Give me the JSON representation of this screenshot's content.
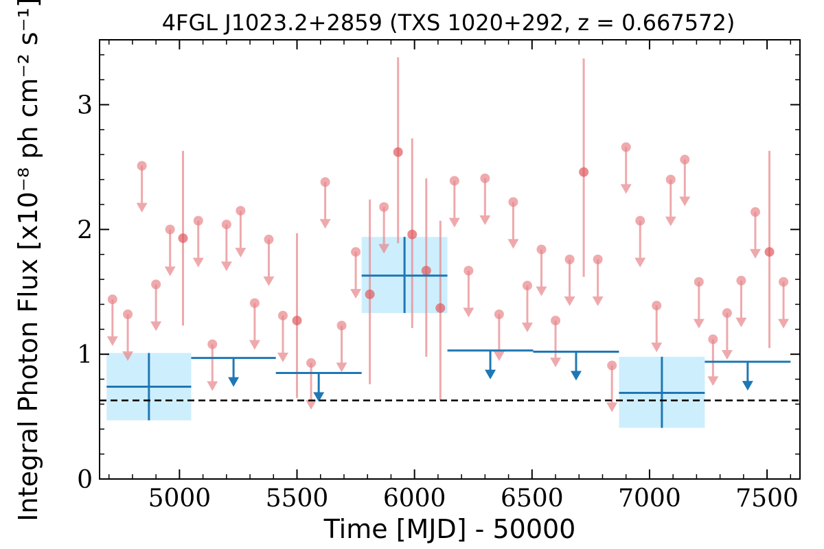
{
  "chart_data": {
    "type": "scatter",
    "title": "4FGL J1023.2+2859 (TXS 1020+292, z = 0.667572)",
    "xlabel": "Time [MJD] - 50000",
    "ylabel": "Integral Photon Flux [x10⁻⁸ ph cm⁻² s⁻¹]",
    "xlim": [
      4660,
      7640
    ],
    "ylim": [
      0,
      3.52
    ],
    "xticks": [
      5000,
      5500,
      6000,
      6500,
      7000,
      7500
    ],
    "xtick_labels": [
      "5000",
      "5500",
      "6000",
      "6500",
      "7000",
      "7500"
    ],
    "yticks": [
      0,
      1,
      2,
      3
    ],
    "ytick_labels": [
      "0",
      "1",
      "2",
      "3"
    ],
    "grid": false,
    "legend": "none",
    "colors": {
      "short_bins": "#e8868a",
      "long_bins": "#1f77b4",
      "uncertainty_box": "#cdeefd",
      "mean_line": "#000000"
    },
    "reference_line": {
      "y": 0.63,
      "style": "dashed"
    },
    "short_bin_detections": [
      {
        "x": 5015,
        "y": 1.93,
        "ylo": 1.23,
        "yhi": 2.63
      },
      {
        "x": 5500,
        "y": 1.27,
        "ylo": 0.65,
        "yhi": 1.97
      },
      {
        "x": 5810,
        "y": 1.48,
        "ylo": 0.76,
        "yhi": 2.24
      },
      {
        "x": 5930,
        "y": 2.62,
        "ylo": 1.89,
        "yhi": 3.38
      },
      {
        "x": 5990,
        "y": 1.96,
        "ylo": 1.21,
        "yhi": 2.73
      },
      {
        "x": 6050,
        "y": 1.67,
        "ylo": 0.98,
        "yhi": 2.41
      },
      {
        "x": 6110,
        "y": 1.37,
        "ylo": 0.63,
        "yhi": 2.07
      },
      {
        "x": 6720,
        "y": 2.46,
        "ylo": 1.62,
        "yhi": 3.37
      },
      {
        "x": 7510,
        "y": 1.82,
        "ylo": 1.05,
        "yhi": 2.63
      }
    ],
    "short_bin_upper_limits": [
      {
        "x": 4715,
        "y": 1.44
      },
      {
        "x": 4780,
        "y": 1.32
      },
      {
        "x": 4840,
        "y": 2.51
      },
      {
        "x": 4900,
        "y": 1.56
      },
      {
        "x": 4960,
        "y": 2.0
      },
      {
        "x": 5080,
        "y": 2.07
      },
      {
        "x": 5140,
        "y": 1.08
      },
      {
        "x": 5200,
        "y": 2.04
      },
      {
        "x": 5260,
        "y": 2.15
      },
      {
        "x": 5320,
        "y": 1.41
      },
      {
        "x": 5380,
        "y": 1.92
      },
      {
        "x": 5440,
        "y": 1.31
      },
      {
        "x": 5560,
        "y": 0.93
      },
      {
        "x": 5620,
        "y": 2.38
      },
      {
        "x": 5690,
        "y": 1.23
      },
      {
        "x": 5750,
        "y": 1.82
      },
      {
        "x": 5870,
        "y": 2.18
      },
      {
        "x": 6170,
        "y": 2.39
      },
      {
        "x": 6230,
        "y": 1.67
      },
      {
        "x": 6300,
        "y": 2.41
      },
      {
        "x": 6360,
        "y": 1.32
      },
      {
        "x": 6420,
        "y": 2.22
      },
      {
        "x": 6480,
        "y": 1.55
      },
      {
        "x": 6540,
        "y": 1.84
      },
      {
        "x": 6600,
        "y": 1.27
      },
      {
        "x": 6660,
        "y": 1.76
      },
      {
        "x": 6780,
        "y": 1.76
      },
      {
        "x": 6840,
        "y": 0.91
      },
      {
        "x": 6900,
        "y": 2.66
      },
      {
        "x": 6960,
        "y": 2.07
      },
      {
        "x": 7030,
        "y": 1.39
      },
      {
        "x": 7090,
        "y": 2.4
      },
      {
        "x": 7150,
        "y": 2.56
      },
      {
        "x": 7210,
        "y": 1.58
      },
      {
        "x": 7270,
        "y": 1.12
      },
      {
        "x": 7330,
        "y": 1.33
      },
      {
        "x": 7390,
        "y": 1.59
      },
      {
        "x": 7450,
        "y": 2.14
      },
      {
        "x": 7570,
        "y": 1.58
      }
    ],
    "long_bin_detections": [
      {
        "x0": 4690,
        "x1": 5050,
        "y": 0.74,
        "ylo": 0.47,
        "yhi": 1.01
      },
      {
        "x0": 5775,
        "x1": 6140,
        "y": 1.63,
        "ylo": 1.33,
        "yhi": 1.94
      },
      {
        "x0": 6870,
        "x1": 7235,
        "y": 0.69,
        "ylo": 0.41,
        "yhi": 0.98
      }
    ],
    "long_bin_upper_limits": [
      {
        "x0": 5050,
        "x1": 5410,
        "y": 0.97
      },
      {
        "x0": 5410,
        "x1": 5775,
        "y": 0.85
      },
      {
        "x0": 6140,
        "x1": 6505,
        "y": 1.03
      },
      {
        "x0": 6505,
        "x1": 6870,
        "y": 1.02
      },
      {
        "x0": 7235,
        "x1": 7600,
        "y": 0.94
      }
    ]
  }
}
